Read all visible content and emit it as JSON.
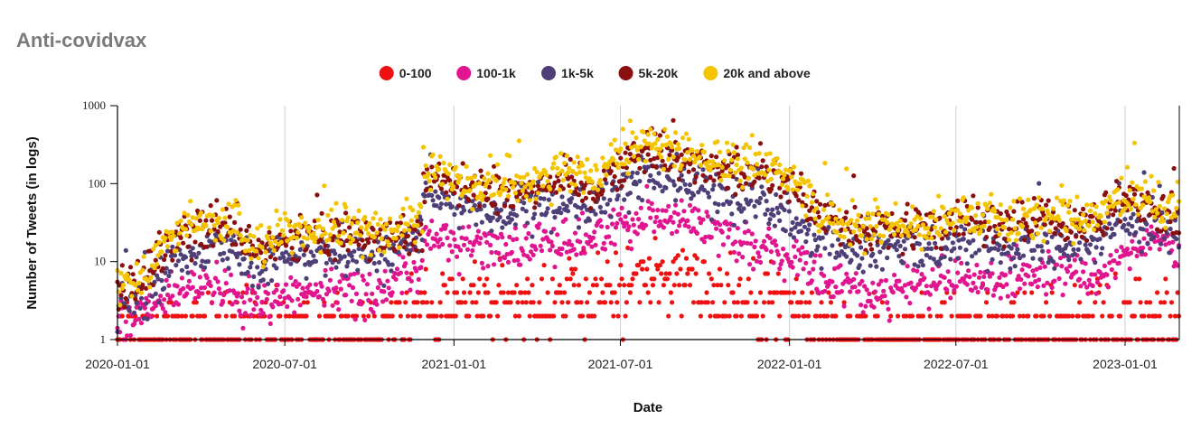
{
  "chart_data": {
    "type": "scatter",
    "title": "Anti-covidvax",
    "xlabel": "Date",
    "ylabel": "Number of Tweets (in logs)",
    "yscale": "log",
    "ylim": [
      1,
      1000
    ],
    "xlim": [
      "2020-01-01",
      "2023-03-01"
    ],
    "x_ticks": [
      "2020-01-01",
      "2020-07-01",
      "2021-01-01",
      "2021-07-01",
      "2022-01-01",
      "2022-07-01",
      "2023-01-01"
    ],
    "y_ticks": [
      {
        "value": 1,
        "label": "1"
      },
      {
        "value": 10,
        "label": "10"
      },
      {
        "value": 100,
        "label": "100"
      },
      {
        "value": 1000,
        "label": "1000"
      }
    ],
    "grid": "vertical",
    "legend_position": "top-center",
    "sampling": "monthly anchor values of an approximately daily series",
    "series": [
      {
        "name": "0-100",
        "color": "#ee1111",
        "months": [
          "2020-01-01",
          "2020-02-01",
          "2020-03-01",
          "2020-04-01",
          "2020-05-01",
          "2020-06-01",
          "2020-07-01",
          "2020-08-01",
          "2020-09-01",
          "2020-10-01",
          "2020-11-01",
          "2020-12-01",
          "2021-01-01",
          "2021-02-01",
          "2021-03-01",
          "2021-04-01",
          "2021-05-01",
          "2021-06-01",
          "2021-07-01",
          "2021-08-01",
          "2021-09-01",
          "2021-10-01",
          "2021-11-01",
          "2021-12-01",
          "2022-01-01",
          "2022-02-01",
          "2022-03-01",
          "2022-04-01",
          "2022-05-01",
          "2022-06-01",
          "2022-07-01",
          "2022-08-01",
          "2022-09-01",
          "2022-10-01",
          "2022-11-01",
          "2022-12-01",
          "2023-01-01",
          "2023-02-01",
          "2023-03-01"
        ],
        "values": [
          1.3,
          1.3,
          1.5,
          1.6,
          1.5,
          1.4,
          1.5,
          1.5,
          1.6,
          1.6,
          1.9,
          2.8,
          3.2,
          3.0,
          3.0,
          3.1,
          3.4,
          3.6,
          4.8,
          6.8,
          5.6,
          4.8,
          3.8,
          3.3,
          3.0,
          1.8,
          1.4,
          1.3,
          1.3,
          1.3,
          1.4,
          1.4,
          1.4,
          1.5,
          1.5,
          1.5,
          1.8,
          1.9,
          1.6
        ]
      },
      {
        "name": "100-1k",
        "color": "#e0158f",
        "months": [
          "2020-01-01",
          "2020-02-01",
          "2020-03-01",
          "2020-04-01",
          "2020-05-01",
          "2020-06-01",
          "2020-07-01",
          "2020-08-01",
          "2020-09-01",
          "2020-10-01",
          "2020-11-01",
          "2020-12-01",
          "2021-01-01",
          "2021-02-01",
          "2021-03-01",
          "2021-04-01",
          "2021-05-01",
          "2021-06-01",
          "2021-07-01",
          "2021-08-01",
          "2021-09-01",
          "2021-10-01",
          "2021-11-01",
          "2021-12-01",
          "2022-01-01",
          "2022-02-01",
          "2022-03-01",
          "2022-04-01",
          "2022-05-01",
          "2022-06-01",
          "2022-07-01",
          "2022-08-01",
          "2022-09-01",
          "2022-10-01",
          "2022-11-01",
          "2022-12-01",
          "2023-01-01",
          "2023-02-01",
          "2023-03-01"
        ],
        "values": [
          1.7,
          2.1,
          3.8,
          5.0,
          4.5,
          3.0,
          3.8,
          4.2,
          4.5,
          4.0,
          5.5,
          22,
          18,
          16,
          15,
          17,
          18,
          20,
          30,
          42,
          36,
          28,
          22,
          16,
          11,
          6.0,
          4.5,
          4.0,
          5.0,
          5.0,
          6.0,
          6.0,
          6.0,
          6.5,
          7.0,
          6.5,
          14,
          18,
          12
        ]
      },
      {
        "name": "1k-5k",
        "color": "#4e3f78",
        "months": [
          "2020-01-01",
          "2020-02-01",
          "2020-03-01",
          "2020-04-01",
          "2020-05-01",
          "2020-06-01",
          "2020-07-01",
          "2020-08-01",
          "2020-09-01",
          "2020-10-01",
          "2020-11-01",
          "2020-12-01",
          "2021-01-01",
          "2021-02-01",
          "2021-03-01",
          "2021-04-01",
          "2021-05-01",
          "2021-06-01",
          "2021-07-01",
          "2021-08-01",
          "2021-09-01",
          "2021-10-01",
          "2021-11-01",
          "2021-12-01",
          "2022-01-01",
          "2022-02-01",
          "2022-03-01",
          "2022-04-01",
          "2022-05-01",
          "2022-06-01",
          "2022-07-01",
          "2022-08-01",
          "2022-09-01",
          "2022-10-01",
          "2022-11-01",
          "2022-12-01",
          "2023-01-01",
          "2023-02-01",
          "2023-03-01"
        ],
        "values": [
          2.5,
          3.2,
          10,
          18,
          16,
          7.0,
          12,
          13,
          14,
          12,
          13,
          70,
          55,
          45,
          40,
          48,
          55,
          50,
          90,
          130,
          110,
          85,
          70,
          60,
          40,
          18,
          15,
          13,
          15,
          14,
          18,
          18,
          17,
          17,
          18,
          18,
          32,
          30,
          22
        ]
      },
      {
        "name": "5k-20k",
        "color": "#8b0f0f",
        "months": [
          "2020-01-01",
          "2020-02-01",
          "2020-03-01",
          "2020-04-01",
          "2020-05-01",
          "2020-06-01",
          "2020-07-01",
          "2020-08-01",
          "2020-09-01",
          "2020-10-01",
          "2020-11-01",
          "2020-12-01",
          "2021-01-01",
          "2021-02-01",
          "2021-03-01",
          "2021-04-01",
          "2021-05-01",
          "2021-06-01",
          "2021-07-01",
          "2021-08-01",
          "2021-09-01",
          "2021-10-01",
          "2021-11-01",
          "2021-12-01",
          "2022-01-01",
          "2022-02-01",
          "2022-03-01",
          "2022-04-01",
          "2022-05-01",
          "2022-06-01",
          "2022-07-01",
          "2022-08-01",
          "2022-09-01",
          "2022-10-01",
          "2022-11-01",
          "2022-12-01",
          "2023-01-01",
          "2023-02-01",
          "2023-03-01"
        ],
        "values": [
          4.0,
          6.0,
          18,
          30,
          28,
          12,
          18,
          20,
          22,
          20,
          20,
          130,
          100,
          80,
          80,
          95,
          110,
          90,
          180,
          280,
          230,
          180,
          140,
          150,
          110,
          35,
          28,
          25,
          28,
          26,
          35,
          32,
          30,
          32,
          32,
          32,
          60,
          55,
          35
        ]
      },
      {
        "name": "20k and above",
        "color": "#f5c400",
        "months": [
          "2020-01-01",
          "2020-02-01",
          "2020-03-01",
          "2020-04-01",
          "2020-05-01",
          "2020-06-01",
          "2020-07-01",
          "2020-08-01",
          "2020-09-01",
          "2020-10-01",
          "2020-11-01",
          "2020-12-01",
          "2021-01-01",
          "2021-02-01",
          "2021-03-01",
          "2021-04-01",
          "2021-05-01",
          "2021-06-01",
          "2021-07-01",
          "2021-08-01",
          "2021-09-01",
          "2021-10-01",
          "2021-11-01",
          "2021-12-01",
          "2022-01-01",
          "2022-02-01",
          "2022-03-01",
          "2022-04-01",
          "2022-05-01",
          "2022-06-01",
          "2022-07-01",
          "2022-08-01",
          "2022-09-01",
          "2022-10-01",
          "2022-11-01",
          "2022-12-01",
          "2023-01-01",
          "2023-02-01",
          "2023-03-01"
        ],
        "values": [
          5.0,
          7.5,
          22,
          38,
          35,
          15,
          22,
          25,
          28,
          25,
          24,
          160,
          120,
          95,
          100,
          120,
          135,
          110,
          220,
          330,
          280,
          220,
          170,
          180,
          140,
          40,
          32,
          30,
          32,
          30,
          42,
          38,
          35,
          38,
          38,
          38,
          72,
          65,
          42
        ]
      }
    ]
  }
}
